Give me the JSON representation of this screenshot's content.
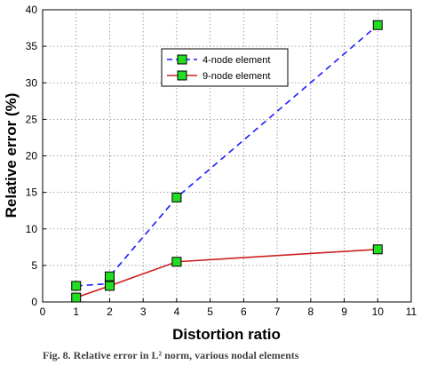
{
  "chart_data": {
    "type": "line",
    "title": "",
    "xlabel": "Distortion  ratio",
    "ylabel": "Relative  error (%)",
    "xlim": [
      0,
      11
    ],
    "ylim": [
      0,
      40
    ],
    "xticks": [
      0,
      1,
      2,
      3,
      4,
      5,
      6,
      7,
      8,
      9,
      10,
      11
    ],
    "yticks": [
      0,
      5,
      10,
      15,
      20,
      25,
      30,
      35,
      40
    ],
    "grid": true,
    "legend_position": "top-center",
    "series": [
      {
        "name": "4-node element",
        "color": "#1a1aff",
        "line_style": "dashed",
        "marker": "square",
        "marker_color": "#22dd22",
        "x": [
          1,
          2,
          2,
          4,
          10
        ],
        "y": [
          2.2,
          2.5,
          3.5,
          14.3,
          37.9
        ]
      },
      {
        "name": "9-node element",
        "color": "#cc2020",
        "line_style": "solid",
        "marker": "square",
        "marker_color": "#22dd22",
        "x": [
          1,
          2,
          4,
          10
        ],
        "y": [
          0.6,
          2.2,
          5.5,
          7.2
        ]
      }
    ]
  },
  "caption": "Fig. 8. Relative error in L² norm, various nodal elements"
}
